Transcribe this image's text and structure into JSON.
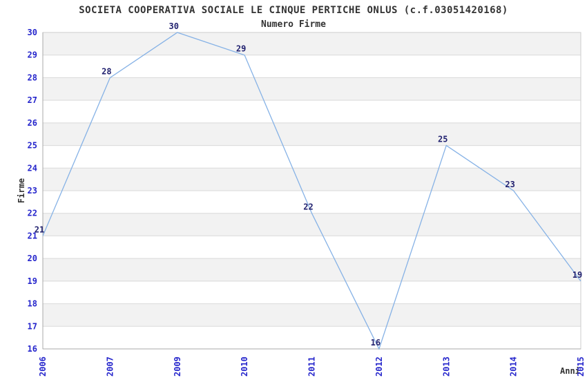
{
  "chart_data": {
    "type": "line",
    "title": "SOCIETA COOPERATIVA SOCIALE LE CINQUE PERTICHE ONLUS (c.f.03051420168)",
    "subtitle": "Numero Firme",
    "xlabel": "Anni",
    "ylabel": "Firme",
    "categories": [
      "2006",
      "2007",
      "2009",
      "2010",
      "2011",
      "2012",
      "2013",
      "2014",
      "2015"
    ],
    "values": [
      21,
      28,
      30,
      29,
      22,
      16,
      25,
      23,
      19
    ],
    "ylim": [
      16,
      30
    ],
    "ytick_step": 1,
    "grid": "horizontal gridlines with alternating white/grey bands",
    "legend": "none",
    "colors": {
      "line": "#86b2e6",
      "band_light": "#ffffff",
      "band_grey": "#f2f2f2",
      "gridline": "#d9d9d9",
      "plot_border": "#cccccc",
      "axis_line": "#a8a8a8",
      "tick_label": "#2626cc",
      "point_label": "#222270",
      "title_text": "#333333"
    }
  }
}
